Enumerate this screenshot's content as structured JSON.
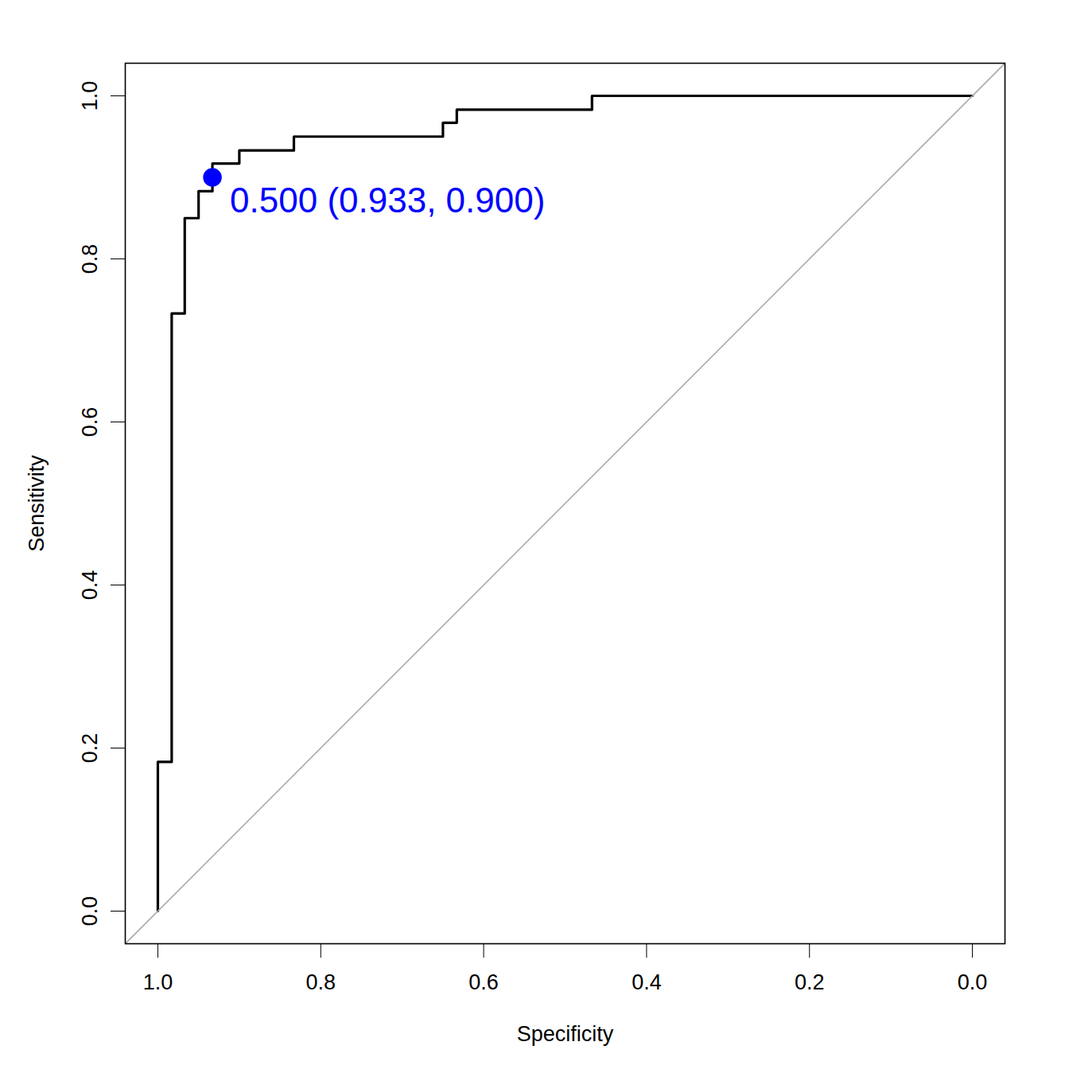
{
  "chart_data": {
    "type": "line",
    "x_label": "Specificity",
    "y_label": "Sensitivity",
    "xlim": [
      1.04,
      -0.04
    ],
    "ylim": [
      -0.04,
      1.04
    ],
    "xticks": [
      {
        "value": 1.0,
        "label": "1.0"
      },
      {
        "value": 0.8,
        "label": "0.8"
      },
      {
        "value": 0.6,
        "label": "0.6"
      },
      {
        "value": 0.4,
        "label": "0.4"
      },
      {
        "value": 0.2,
        "label": "0.2"
      },
      {
        "value": 0.0,
        "label": "0.0"
      }
    ],
    "yticks": [
      {
        "value": 0.0,
        "label": "0.0"
      },
      {
        "value": 0.2,
        "label": "0.2"
      },
      {
        "value": 0.4,
        "label": "0.4"
      },
      {
        "value": 0.6,
        "label": "0.6"
      },
      {
        "value": 0.8,
        "label": "0.8"
      },
      {
        "value": 1.0,
        "label": "1.0"
      }
    ],
    "grid": false,
    "series": [
      {
        "color": "#000000",
        "line_style": "solid",
        "x": [
          1.0,
          1.0,
          0.983,
          0.983,
          0.967,
          0.967,
          0.95,
          0.95,
          0.933,
          0.933,
          0.9,
          0.9,
          0.833,
          0.833,
          0.65,
          0.65,
          0.633,
          0.633,
          0.467,
          0.467,
          0.0
        ],
        "values": [
          0.0,
          0.183,
          0.183,
          0.733,
          0.733,
          0.85,
          0.85,
          0.883,
          0.883,
          0.917,
          0.917,
          0.933,
          0.933,
          0.95,
          0.95,
          0.967,
          0.967,
          0.983,
          0.983,
          1.0,
          1.0
        ]
      },
      {
        "color": "#aaaaaa",
        "line_style": "solid",
        "x": [
          1.04,
          -0.04
        ],
        "values": [
          -0.04,
          1.04
        ]
      }
    ],
    "annotations": [
      {
        "text": "0.500 (0.933, 0.900)",
        "x": 0.933,
        "y": 0.9,
        "color": "#0000ff",
        "marker": "circle"
      }
    ]
  }
}
